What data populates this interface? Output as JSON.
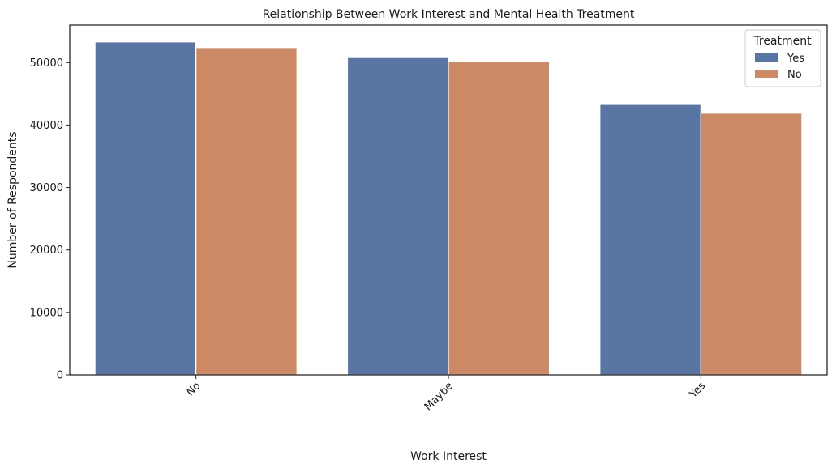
{
  "chart_data": {
    "type": "bar",
    "title": "Relationship Between Work Interest and Mental Health Treatment",
    "xlabel": "Work Interest",
    "ylabel": "Number of Respondents",
    "categories": [
      "No",
      "Maybe",
      "Yes"
    ],
    "series": [
      {
        "name": "Yes",
        "color": "#5875a4",
        "values": [
          53300,
          50800,
          43300
        ]
      },
      {
        "name": "No",
        "color": "#cc8963",
        "values": [
          52400,
          50200,
          41900
        ]
      }
    ],
    "ylim": [
      0,
      56000
    ],
    "yticks": [
      0,
      10000,
      20000,
      30000,
      40000,
      50000
    ],
    "legend": {
      "title": "Treatment",
      "position": "top-right"
    },
    "xtick_rotation": 45,
    "grid": false
  }
}
